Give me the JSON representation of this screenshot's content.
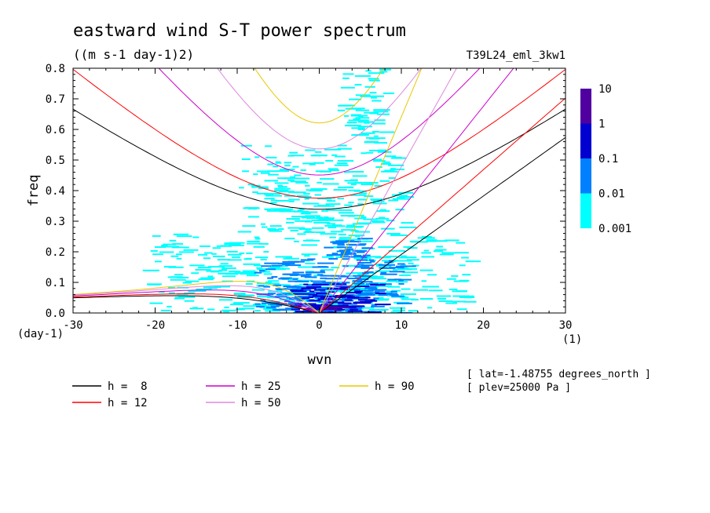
{
  "chart_data": {
    "type": "heatmap",
    "title": "eastward wind S-T power spectrum",
    "subtitle": "((m s-1 day-1)2)",
    "run_label": "T39L24_eml_3kw1",
    "xlabel": "wvn",
    "ylabel": "freq",
    "x_unit": "(1)",
    "y_unit": "(day-1)",
    "xlim": [
      -30,
      30
    ],
    "ylim": [
      0,
      0.8
    ],
    "x_ticks": [
      -30,
      -20,
      -10,
      0,
      10,
      20,
      30
    ],
    "y_ticks": [
      0.0,
      0.1,
      0.2,
      0.3,
      0.4,
      0.5,
      0.6,
      0.7,
      0.8
    ],
    "x_tick_labels": [
      "-30",
      "-20",
      "-10",
      "0",
      "10",
      "20",
      "30"
    ],
    "y_tick_labels": [
      "0.0",
      "0.1",
      "0.2",
      "0.3",
      "0.4",
      "0.5",
      "0.6",
      "0.7",
      "0.8"
    ],
    "colorbar": {
      "levels": [
        "0.001",
        "0.01",
        "0.1",
        "1",
        "10"
      ],
      "colors": [
        "#00ffff",
        "#0080ff",
        "#0000d0",
        "#5000a0"
      ]
    },
    "power_regions": [
      {
        "level": 0,
        "x": [
          -22,
          18
        ],
        "y": [
          0.0,
          0.26
        ]
      },
      {
        "level": 0,
        "x": [
          -10,
          10
        ],
        "y": [
          0.26,
          0.55
        ]
      },
      {
        "level": 0,
        "x": [
          2,
          8
        ],
        "y": [
          0.55,
          0.8
        ]
      },
      {
        "level": 1,
        "x": [
          -8,
          10
        ],
        "y": [
          0.0,
          0.18
        ]
      },
      {
        "level": 1,
        "x": [
          0,
          6
        ],
        "y": [
          0.18,
          0.25
        ]
      },
      {
        "level": 2,
        "x": [
          -4,
          7
        ],
        "y": [
          0.0,
          0.1
        ]
      },
      {
        "level": 3,
        "x": [
          -1,
          2
        ],
        "y": [
          0.0,
          0.04
        ]
      }
    ],
    "dispersion_curves": [
      {
        "name": "h =  8",
        "h": 8,
        "color": "#000000",
        "kelvin_x_at_freq_0_8": 45,
        "ig_min_freq": 0.33,
        "rossby_max_freq": 0.06
      },
      {
        "name": "h = 12",
        "h": 12,
        "color": "#ff0000",
        "kelvin_x_at_freq_0_8": 33,
        "ig_min_freq": 0.37,
        "rossby_max_freq": 0.065
      },
      {
        "name": "h = 25",
        "h": 25,
        "color": "#cc00cc",
        "kelvin_x_at_freq_0_8": 23,
        "ig_min_freq": 0.44,
        "rossby_max_freq": 0.075
      },
      {
        "name": "h = 50",
        "h": 50,
        "color": "#dd88dd",
        "kelvin_x_at_freq_0_8": 16,
        "ig_min_freq": 0.525,
        "rossby_max_freq": 0.09
      },
      {
        "name": "h = 90",
        "h": 90,
        "color": "#e8c800",
        "kelvin_x_at_freq_0_8": 12,
        "ig_min_freq": 0.61,
        "rossby_max_freq": 0.105
      }
    ],
    "annotations": [
      "[ lat=-1.48755 degrees_north ]",
      "[ plev=25000 Pa ]"
    ]
  }
}
